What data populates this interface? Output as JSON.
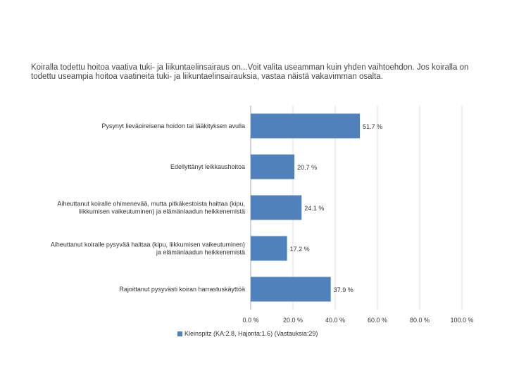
{
  "chart_data": {
    "type": "bar",
    "orientation": "horizontal",
    "title": "Koiralla todettu hoitoa vaativa tuki- ja liikuntaelinsairaus on...Voit valita useamman kuin yhden vaihtoehdon. Jos koiralla on todettu useampia hoitoa vaatineita tuki- ja liikuntaelinsairauksia, vastaa näistä vakavimman osalta.",
    "categories": [
      [
        "Pysynyt lieväoireisena hoidon tai lääkityksen avulla"
      ],
      [
        "Edellyttänyt leikkaushoitoa"
      ],
      [
        "Aiheuttanut koiralle ohimenevää, mutta pitkäkestoista haittaa (kipu,",
        "liikkumisen vaikeutuminen) ja elämänlaadun heikkenemistä"
      ],
      [
        "Aiheuttanut koiralle pysyvää haittaa (kipu, liikkumisen vaikeutuminen)",
        "ja elämänlaadun heikkenemistä"
      ],
      [
        "Rajoittanut pysyvästi koiran harrastuskäyttöä"
      ]
    ],
    "series": [
      {
        "name": "Kleinspitz (KA:2.8, Hajonta:1.6) (Vastauksia:29)",
        "values": [
          51.7,
          20.7,
          24.1,
          17.2,
          37.9
        ],
        "labels": [
          "51.7 %",
          "20.7 %",
          "24.1 %",
          "17.2 %",
          "37.9 %"
        ],
        "color": "#4f81bd"
      }
    ],
    "xlim": [
      0,
      100
    ],
    "xticks": [
      0,
      20,
      40,
      60,
      80,
      100
    ],
    "xtick_labels": [
      "0.0 %",
      "20.0 %",
      "40.0 %",
      "60.0 %",
      "80.0 %",
      "100.0 %"
    ],
    "grid": true,
    "legend_position": "bottom"
  }
}
